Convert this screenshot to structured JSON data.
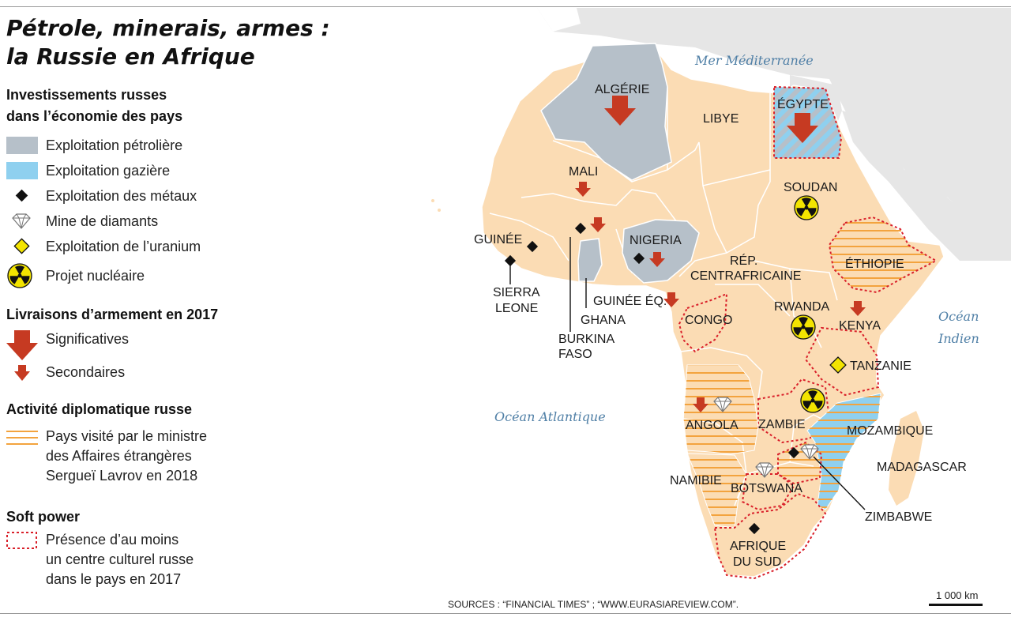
{
  "title_line1": "Pétrole, minerais, armes :",
  "title_line2": "la Russie en Afrique",
  "legend": {
    "investments_heading_1": "Investissements russes",
    "investments_heading_2": "dans l’économie des pays",
    "oil": "Exploitation pétrolière",
    "gas": "Exploitation gazière",
    "metals": "Exploitation des métaux",
    "diamonds": "Mine de diamants",
    "uranium": "Exploitation de l’uranium",
    "nuclear": "Projet nucléaire",
    "arms_heading": "Livraisons d’armement en 2017",
    "arms_major": "Significatives",
    "arms_minor": "Secondaires",
    "diplo_heading": "Activité diplomatique russe",
    "diplo_1": "Pays visité par le ministre",
    "diplo_2": "des Affaires étrangères",
    "diplo_3": "Sergueï Lavrov en 2018",
    "soft_heading": "Soft power",
    "soft_1": "Présence d’au moins",
    "soft_2": "un centre culturel russe",
    "soft_3": "dans le pays en 2017"
  },
  "colors": {
    "land_africa": "#fbdcb4",
    "land_other": "#e6e6e6",
    "oil": "#b6c0c9",
    "gas": "#8fd0ef",
    "stripes": "#f3a33e",
    "arrow": "#c63a22",
    "dotted_border": "#d9202a",
    "nuclear": "#f3e400",
    "sea_text": "#4f7fa6"
  },
  "seas": {
    "med": "Mer Méditerranée",
    "indian_1": "Océan",
    "indian_2": "Indien",
    "atlantic": "Océan Atlantique"
  },
  "countries": {
    "algerie": "ALGÉRIE",
    "libye": "LIBYE",
    "egypte": "ÉGYPTE",
    "mali": "MALI",
    "soudan": "SOUDAN",
    "guinee": "GUINÉE",
    "nigeria": "NIGERIA",
    "sierra_1": "SIERRA",
    "sierra_2": "LEONE",
    "rca_1": "RÉP.",
    "rca_2": "CENTRAFRICAINE",
    "ethiopie": "ÉTHIOPIE",
    "guinee_eq": "GUINÉE ÉQ.",
    "ghana": "GHANA",
    "burkina_1": "BURKINA",
    "burkina_2": "FASO",
    "congo": "CONGO",
    "rwanda": "RWANDA",
    "kenya": "KENYA",
    "tanzanie": "TANZANIE",
    "angola": "ANGOLA",
    "zambie": "ZAMBIE",
    "mozambique": "MOZAMBIQUE",
    "madagascar": "MADAGASCAR",
    "namibie": "NAMIBIE",
    "botswana": "BOTSWANA",
    "zimbabwe": "ZIMBABWE",
    "afrique_sud_1": "AFRIQUE",
    "afrique_sud_2": "DU SUD"
  },
  "sources": "SOURCES : “FINANCIAL TIMES” ; “WWW.EURASIAREVIEW.COM”.",
  "scale": "1 000 km"
}
